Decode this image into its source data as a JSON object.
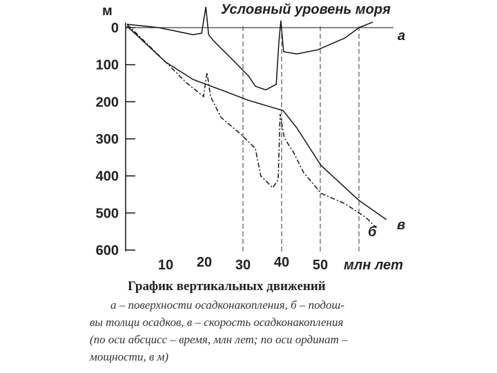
{
  "chart_data": {
    "type": "line",
    "title": "График вертикальных движений",
    "description": [
      "а – поверхности осадконакопления, б – подош-",
      "вы толщи осадков, в – скорость осадконакопления",
      "(по оси абсцисс – время, млн лет; по оси ординат –",
      "мощности, в м)"
    ],
    "annotation": "Условный уровень моря",
    "y_label": "м",
    "x_label": "млн лет",
    "xlim": [
      0,
      70
    ],
    "xticks": [
      10,
      20,
      30,
      40,
      50
    ],
    "ylim": [
      600,
      -70
    ],
    "yticks": [
      0,
      100,
      200,
      300,
      400,
      500,
      600
    ],
    "reference_lines": [
      30,
      40,
      50,
      60
    ],
    "series": [
      {
        "name": "а",
        "color": "#111",
        "style": "solid",
        "x": [
          0,
          8.2,
          17.1,
          19.3,
          20.4,
          21.1,
          22.5,
          27.9,
          31.4,
          33.2,
          35.9,
          38.6,
          39.3,
          39.8,
          40.5,
          43.9,
          49.3,
          56.4,
          60,
          63.6
        ],
        "values": [
          -9,
          0,
          19,
          15,
          -56,
          19,
          37,
          93,
          130,
          158,
          168,
          153,
          37,
          -19,
          65,
          71,
          60,
          28,
          0,
          -15
        ]
      },
      {
        "name": "б",
        "color": "#111",
        "style": "dashdot",
        "x": [
          0,
          10,
          15.4,
          19.8,
          20.7,
          21.6,
          24.3,
          29.6,
          33.2,
          34.6,
          37.7,
          39.1,
          39.6,
          40.7,
          43,
          45.7,
          50.2,
          56.4,
          61.8,
          64.5
        ],
        "values": [
          -9,
          93,
          149,
          186,
          121,
          186,
          242,
          289,
          326,
          400,
          432,
          410,
          233,
          298,
          335,
          391,
          447,
          475,
          512,
          540
        ]
      },
      {
        "name": "в",
        "color": "#111",
        "style": "solid",
        "x": [
          0,
          10,
          17.1,
          24.3,
          31.4,
          40.4,
          43.9,
          50.2,
          60,
          67.1
        ],
        "values": [
          -4,
          93,
          140,
          168,
          196,
          224,
          270,
          372,
          466,
          518
        ]
      }
    ]
  }
}
